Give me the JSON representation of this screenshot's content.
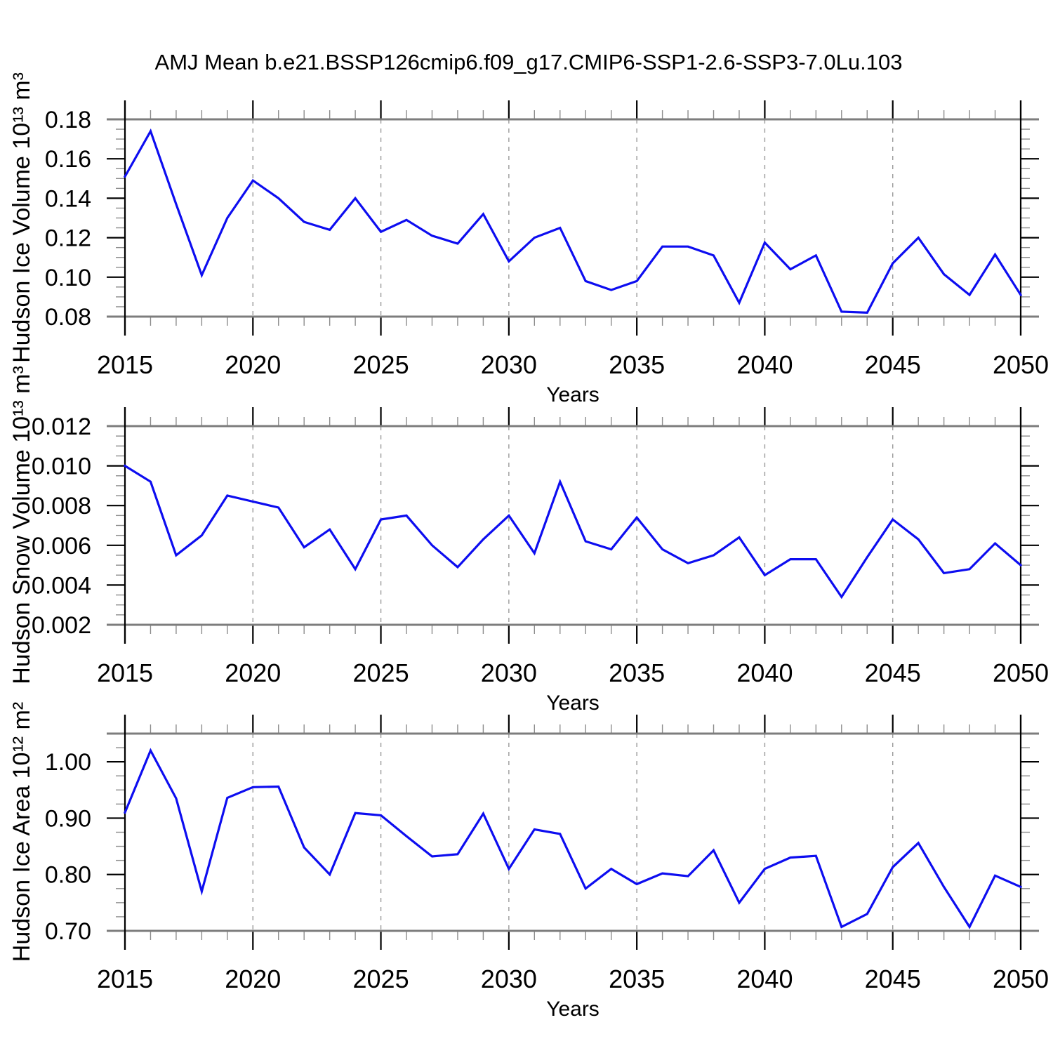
{
  "title": "AMJ Mean b.e21.BSSP126cmip6.f09_g17.CMIP6-SSP1-2.6-SSP3-7.0Lu.103",
  "colors": {
    "line": "#0d0df0",
    "frame_gray": "#7d7d7d",
    "spine_black": "#000000",
    "minor_tick": "#8c8c8c",
    "grid_dashed": "#9a9a9a",
    "text": "#000000",
    "background": "#ffffff"
  },
  "chart_data": [
    {
      "type": "line",
      "id": "hudson-ice-volume",
      "ylabel": "Hudson Ice Volume 10¹³ m³",
      "xlabel": "Years",
      "legend": "none",
      "grid": "vertical-dashed-at-major-xticks",
      "xlim": [
        2015,
        2050
      ],
      "ylim": [
        0.08,
        0.18
      ],
      "yticks": [
        0.08,
        0.1,
        0.12,
        0.14,
        0.16,
        0.18
      ],
      "ytick_labels": [
        "0.08",
        "0.10",
        "0.12",
        "0.14",
        "0.16",
        "0.18"
      ],
      "y_minor_step": 0.005,
      "xticks": [
        2015,
        2020,
        2025,
        2030,
        2035,
        2040,
        2045,
        2050
      ],
      "xtick_labels": [
        "2015",
        "2020",
        "2025",
        "2030",
        "2035",
        "2040",
        "2045",
        "2050"
      ],
      "x_minor_step": 1,
      "x": [
        2015,
        2016,
        2017,
        2018,
        2019,
        2020,
        2021,
        2022,
        2023,
        2024,
        2025,
        2026,
        2027,
        2028,
        2029,
        2030,
        2031,
        2032,
        2033,
        2034,
        2035,
        2036,
        2037,
        2038,
        2039,
        2040,
        2041,
        2042,
        2043,
        2044,
        2045,
        2046,
        2047,
        2048,
        2049,
        2050
      ],
      "values": [
        0.151,
        0.174,
        0.137,
        0.101,
        0.13,
        0.149,
        0.14,
        0.128,
        0.124,
        0.14,
        0.123,
        0.129,
        0.121,
        0.117,
        0.132,
        0.108,
        0.12,
        0.125,
        0.098,
        0.0935,
        0.098,
        0.1155,
        0.1155,
        0.111,
        0.087,
        0.1175,
        0.104,
        0.111,
        0.0825,
        0.082,
        0.107,
        0.12,
        0.1015,
        0.091,
        0.1115,
        0.091
      ]
    },
    {
      "type": "line",
      "id": "hudson-snow-volume",
      "ylabel": "Hudson Snow Volume 10¹³ m³",
      "xlabel": "Years",
      "legend": "none",
      "grid": "vertical-dashed-at-major-xticks",
      "xlim": [
        2015,
        2050
      ],
      "ylim": [
        0.002,
        0.012
      ],
      "yticks": [
        0.002,
        0.004,
        0.006,
        0.008,
        0.01,
        0.012
      ],
      "ytick_labels": [
        "0.002",
        "0.004",
        "0.006",
        "0.008",
        "0.010",
        "0.012"
      ],
      "y_minor_step": 0.0005,
      "xticks": [
        2015,
        2020,
        2025,
        2030,
        2035,
        2040,
        2045,
        2050
      ],
      "xtick_labels": [
        "2015",
        "2020",
        "2025",
        "2030",
        "2035",
        "2040",
        "2045",
        "2050"
      ],
      "x_minor_step": 1,
      "x": [
        2015,
        2016,
        2017,
        2018,
        2019,
        2020,
        2021,
        2022,
        2023,
        2024,
        2025,
        2026,
        2027,
        2028,
        2029,
        2030,
        2031,
        2032,
        2033,
        2034,
        2035,
        2036,
        2037,
        2038,
        2039,
        2040,
        2041,
        2042,
        2043,
        2044,
        2045,
        2046,
        2047,
        2048,
        2049,
        2050
      ],
      "values": [
        0.01,
        0.0092,
        0.0055,
        0.0065,
        0.0085,
        0.0082,
        0.0079,
        0.0059,
        0.0068,
        0.0048,
        0.0073,
        0.0075,
        0.006,
        0.0049,
        0.0063,
        0.0075,
        0.0056,
        0.0092,
        0.0062,
        0.0058,
        0.0074,
        0.0058,
        0.0051,
        0.0055,
        0.0064,
        0.0045,
        0.0053,
        0.0053,
        0.0034,
        0.0054,
        0.0073,
        0.0063,
        0.0046,
        0.0048,
        0.0061,
        0.005
      ]
    },
    {
      "type": "line",
      "id": "hudson-ice-area",
      "ylabel": "Hudson Ice Area 10¹² m²",
      "xlabel": "Years",
      "legend": "none",
      "grid": "vertical-dashed-at-major-xticks",
      "xlim": [
        2015,
        2050
      ],
      "ylim": [
        0.7,
        1.05
      ],
      "yticks": [
        0.7,
        0.8,
        0.9,
        1.0
      ],
      "ytick_labels": [
        "0.70",
        "0.80",
        "0.90",
        "1.00"
      ],
      "y_minor_step": 0.025,
      "xticks": [
        2015,
        2020,
        2025,
        2030,
        2035,
        2040,
        2045,
        2050
      ],
      "xtick_labels": [
        "2015",
        "2020",
        "2025",
        "2030",
        "2035",
        "2040",
        "2045",
        "2050"
      ],
      "x_minor_step": 1,
      "x": [
        2015,
        2016,
        2017,
        2018,
        2019,
        2020,
        2021,
        2022,
        2023,
        2024,
        2025,
        2026,
        2027,
        2028,
        2029,
        2030,
        2031,
        2032,
        2033,
        2034,
        2035,
        2036,
        2037,
        2038,
        2039,
        2040,
        2041,
        2042,
        2043,
        2044,
        2045,
        2046,
        2047,
        2048,
        2049,
        2050
      ],
      "values": [
        0.91,
        1.02,
        0.935,
        0.77,
        0.936,
        0.955,
        0.956,
        0.848,
        0.8,
        0.909,
        0.905,
        0.868,
        0.832,
        0.836,
        0.908,
        0.81,
        0.88,
        0.872,
        0.775,
        0.81,
        0.783,
        0.802,
        0.797,
        0.843,
        0.75,
        0.81,
        0.83,
        0.833,
        0.707,
        0.73,
        0.813,
        0.856,
        0.778,
        0.707,
        0.798,
        0.778
      ]
    }
  ]
}
